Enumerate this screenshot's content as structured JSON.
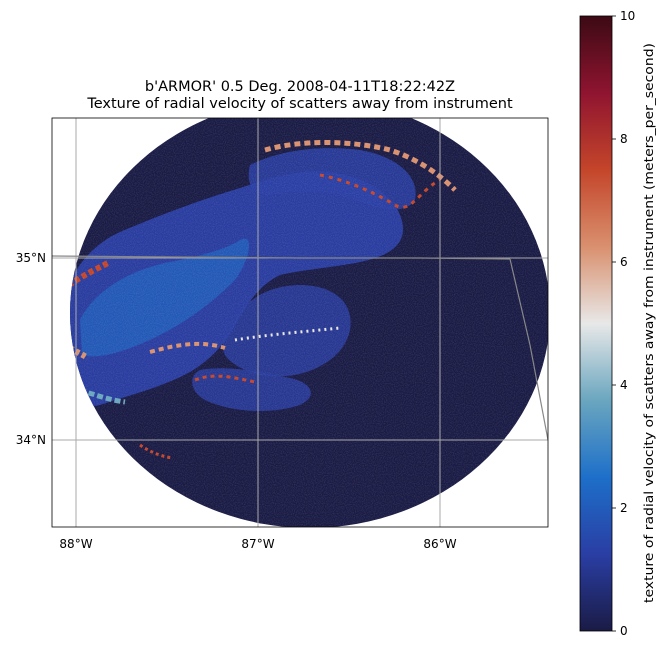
{
  "figure": {
    "title_line1": "b'ARMOR' 0.5 Deg. 2008-04-11T18:22:42Z",
    "title_line2": "Texture of radial velocity of scatters away from instrument"
  },
  "map": {
    "lat_labels": [
      "35°N",
      "34°N"
    ],
    "lon_labels": [
      "88°W",
      "87°W",
      "86°W"
    ],
    "background_color": "#1a1b45",
    "gridline_color": "#aaaaaa",
    "border_color": "#888888"
  },
  "colorbar": {
    "label": "texture of radial velocity of scatters away from instrument (meters_per_second)",
    "tick_labels": [
      "0",
      "2",
      "4",
      "6",
      "8",
      "10"
    ],
    "colormap": [
      "#1a1b45",
      "#2a3ea4",
      "#1d6fc9",
      "#6aa6bf",
      "#e8e8e8",
      "#d9906e",
      "#c4452a",
      "#8f1430",
      "#3c0a14"
    ]
  }
}
